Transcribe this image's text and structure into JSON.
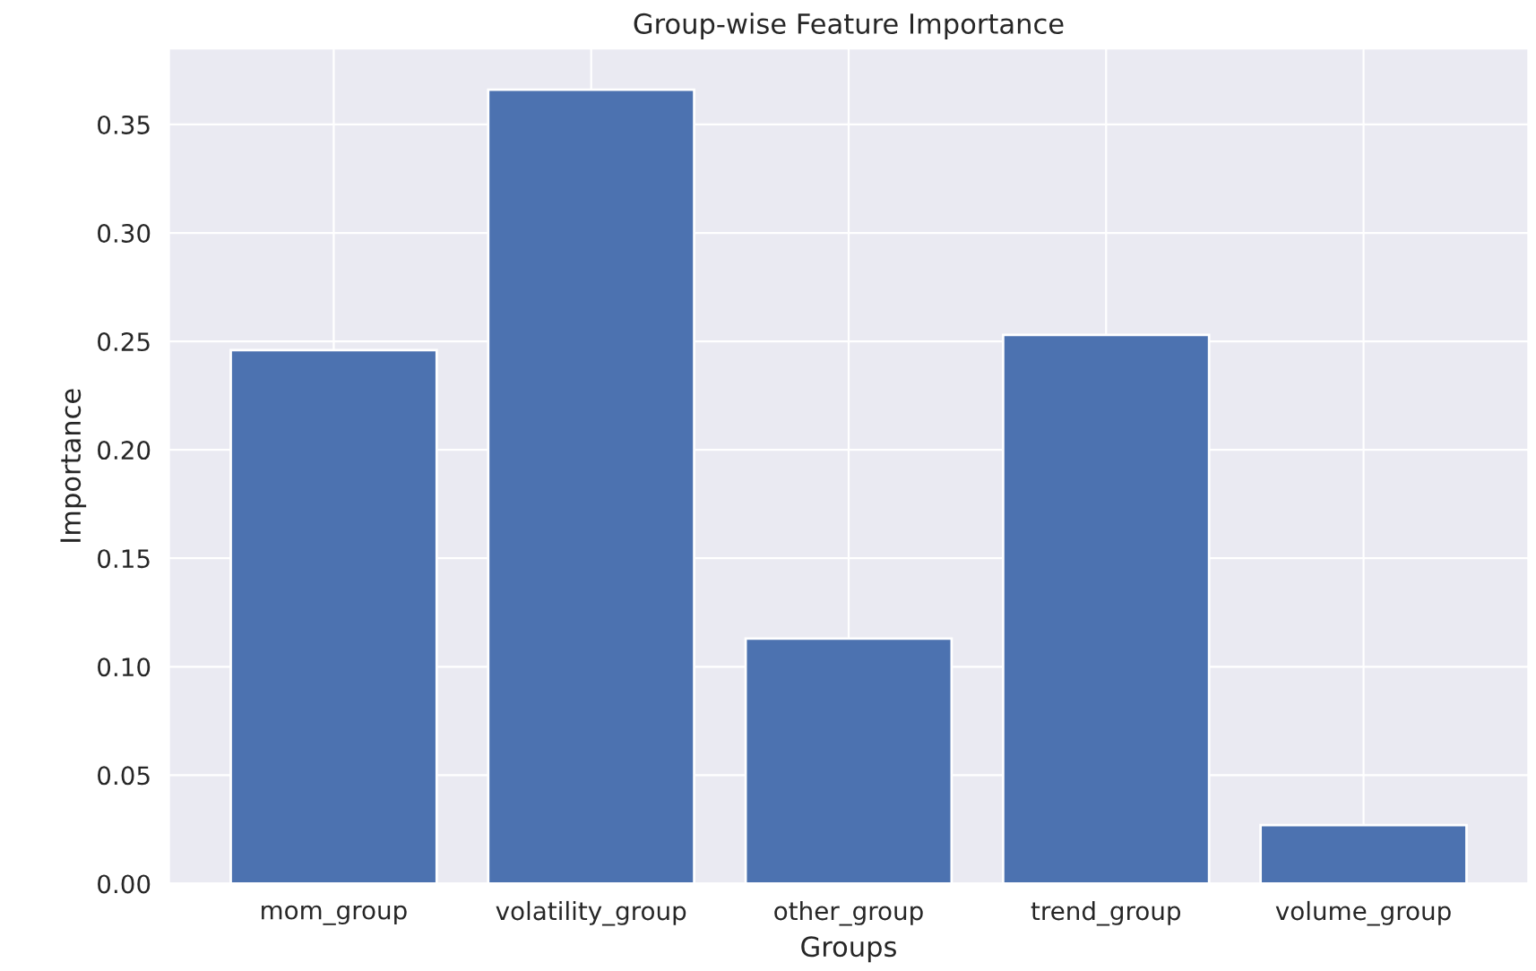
{
  "chart_data": {
    "type": "bar",
    "title": "Group-wise Feature Importance",
    "xlabel": "Groups",
    "ylabel": "Importance",
    "categories": [
      "mom_group",
      "volatility_group",
      "other_group",
      "trend_group",
      "volume_group"
    ],
    "values": [
      0.246,
      0.366,
      0.113,
      0.253,
      0.027
    ],
    "color": "#4c72b0",
    "ylim": [
      0,
      0.385
    ],
    "yticks": [
      {
        "value": 0,
        "label": "0.00"
      },
      {
        "value": 0.05,
        "label": "0.05"
      },
      {
        "value": 0.1,
        "label": "0.10"
      },
      {
        "value": 0.15,
        "label": "0.15"
      },
      {
        "value": 0.2,
        "label": "0.20"
      },
      {
        "value": 0.25,
        "label": "0.25"
      },
      {
        "value": 0.3,
        "label": "0.30"
      },
      {
        "value": 0.35,
        "label": "0.35"
      }
    ],
    "grid": true
  }
}
